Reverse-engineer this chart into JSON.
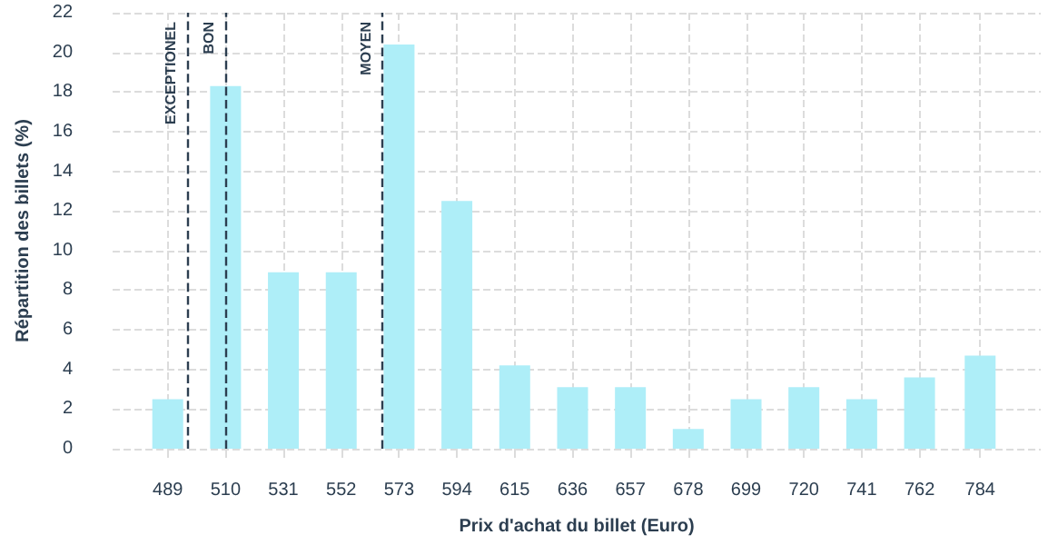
{
  "chart_data": {
    "type": "bar",
    "xlabel": "Prix d'achat du billet (Euro)",
    "ylabel": "Répartition des billets (%)",
    "x": [
      489,
      510,
      531,
      552,
      573,
      594,
      615,
      636,
      657,
      678,
      699,
      720,
      741,
      762,
      784
    ],
    "values": [
      2.5,
      18.3,
      8.9,
      8.9,
      20.4,
      12.5,
      4.2,
      3.1,
      3.1,
      1.0,
      2.5,
      3.1,
      2.5,
      3.6,
      4.7
    ],
    "color": "#aeeef8",
    "xlim": [
      469,
      806
    ],
    "xticks": [
      489,
      510,
      531,
      552,
      573,
      594,
      615,
      636,
      657,
      678,
      699,
      720,
      741,
      762,
      784
    ],
    "ylim": [
      0,
      22
    ],
    "yticks": [
      0,
      2,
      4,
      6,
      8,
      10,
      12,
      14,
      16,
      18,
      20,
      22
    ],
    "ref_lines": [
      {
        "axis": "x",
        "value": 496,
        "label": "EXCEPTIONEL",
        "color": "#2c3e50",
        "line_style": "dashed"
      },
      {
        "axis": "x",
        "value": 510,
        "label": "BON",
        "color": "#2c3e50",
        "line_style": "dashed"
      },
      {
        "axis": "x",
        "value": 567,
        "label": "MOYEN",
        "color": "#2c3e50",
        "line_style": "dashed"
      }
    ],
    "grid": true
  }
}
